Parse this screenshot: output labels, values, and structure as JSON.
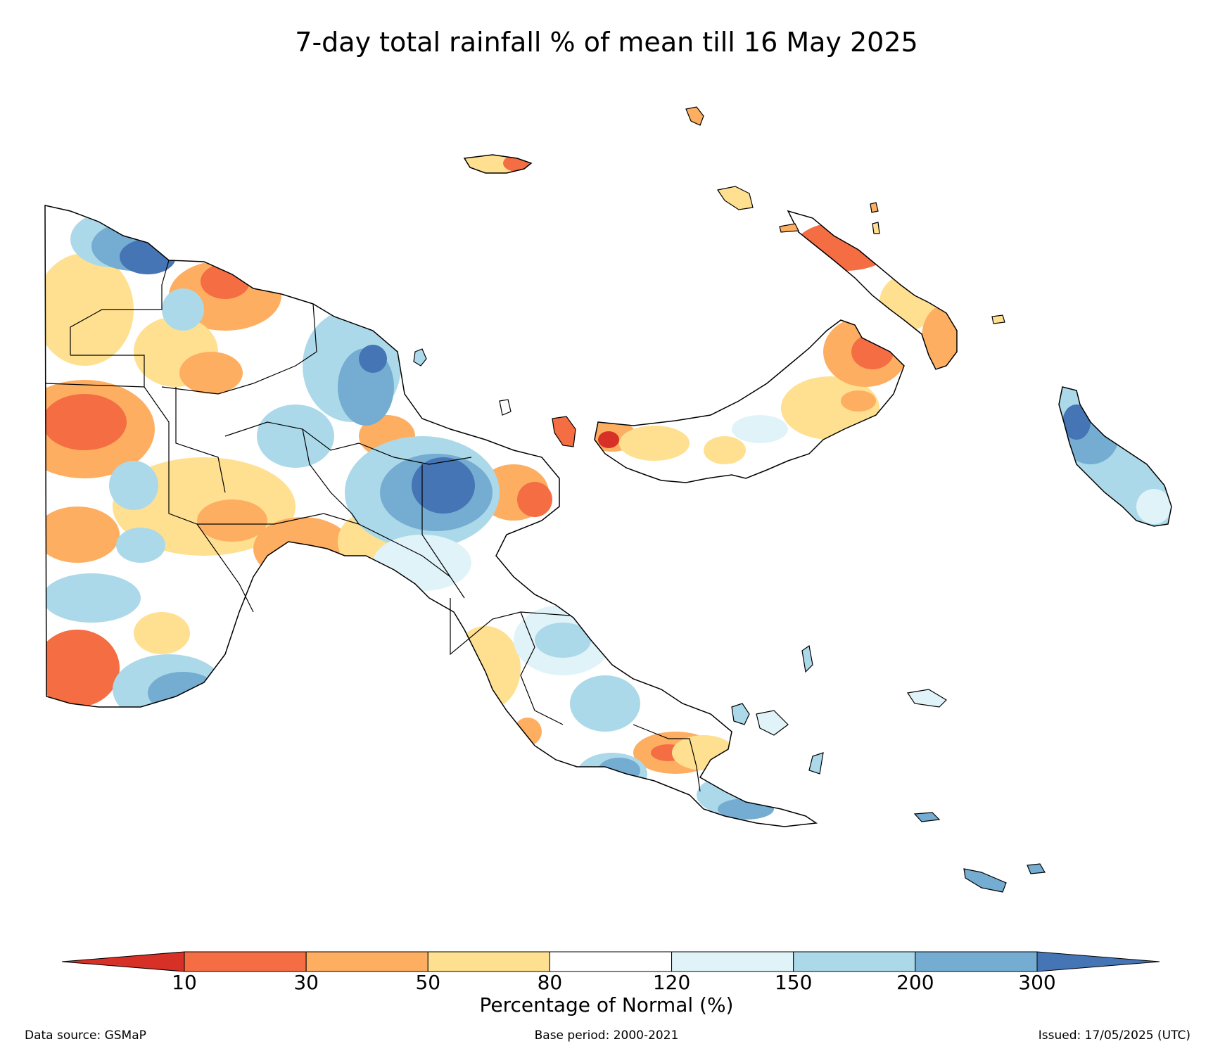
{
  "title": "7-day total rainfall % of mean till 16 May 2025",
  "colorbar": {
    "label": "Percentage of Normal (%)",
    "ticks": [
      "10",
      "30",
      "50",
      "80",
      "120",
      "150",
      "200",
      "300"
    ],
    "below_color": "#d73027",
    "above_color": "#4575b4",
    "bins": [
      {
        "from": "10",
        "to": "30",
        "color": "#f46d43"
      },
      {
        "from": "30",
        "to": "50",
        "color": "#fdae61"
      },
      {
        "from": "50",
        "to": "80",
        "color": "#fee090"
      },
      {
        "from": "80",
        "to": "120",
        "color": "#ffffff"
      },
      {
        "from": "120",
        "to": "150",
        "color": "#e0f3f8"
      },
      {
        "from": "150",
        "to": "200",
        "color": "#abd9e9"
      },
      {
        "from": "200",
        "to": "300",
        "color": "#74add1"
      }
    ]
  },
  "footer": {
    "data_source": "Data source: GSMaP",
    "base_period": "Base period: 2000-2021",
    "issued": "Issued: 17/05/2025 (UTC)"
  }
}
